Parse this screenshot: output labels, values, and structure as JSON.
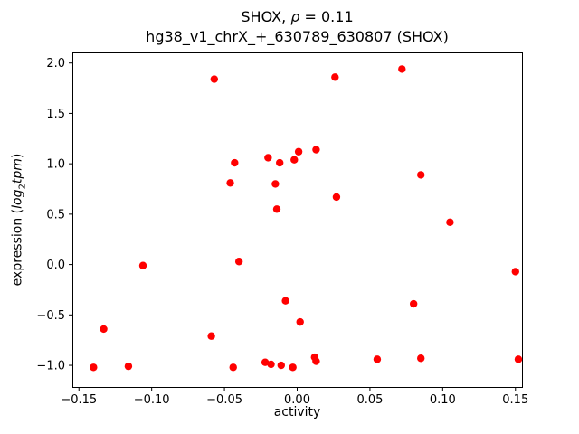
{
  "chart_data": {
    "type": "scatter",
    "title": "SHOX, ρ = 0.11",
    "subtitle": "hg38_v1_chrX_+_630789_630807 (SHOX)",
    "title_parts": {
      "prefix": "SHOX, ",
      "rho": "ρ",
      "suffix": " = 0.11"
    },
    "xlabel": "activity",
    "ylabel": "expression (log2 tpm)",
    "ylabel_parts": {
      "prefix": "expression (",
      "log_word": "log",
      "subscript": "2",
      "tpm_word": "tpm",
      "suffix": ")"
    },
    "marker_color": "#ff0000",
    "grid": false,
    "legend": null,
    "xlim": [
      -0.1545,
      0.1545
    ],
    "ylim": [
      -1.215,
      2.105
    ],
    "xtick_values": [
      -0.15,
      -0.1,
      -0.05,
      0.0,
      0.05,
      0.1,
      0.15
    ],
    "xtick_labels": [
      "−0.15",
      "−0.10",
      "−0.05",
      "0.00",
      "0.05",
      "0.10",
      "0.15"
    ],
    "ytick_values": [
      -1.0,
      -0.5,
      0.0,
      0.5,
      1.0,
      1.5,
      2.0
    ],
    "ytick_labels": [
      "−1.0",
      "−0.5",
      "0.0",
      "0.5",
      "1.0",
      "1.5",
      "2.0"
    ],
    "points": [
      [
        -0.14,
        -1.02
      ],
      [
        -0.133,
        -0.64
      ],
      [
        -0.116,
        -1.01
      ],
      [
        -0.106,
        -0.01
      ],
      [
        -0.059,
        -0.71
      ],
      [
        -0.057,
        1.84
      ],
      [
        -0.046,
        0.81
      ],
      [
        -0.043,
        1.01
      ],
      [
        -0.044,
        -1.02
      ],
      [
        -0.04,
        0.03
      ],
      [
        -0.02,
        1.06
      ],
      [
        -0.022,
        -0.97
      ],
      [
        -0.018,
        -0.99
      ],
      [
        -0.015,
        0.8
      ],
      [
        -0.014,
        0.55
      ],
      [
        -0.012,
        1.01
      ],
      [
        -0.011,
        -1.0
      ],
      [
        -0.002,
        1.04
      ],
      [
        0.001,
        1.12
      ],
      [
        -0.008,
        -0.36
      ],
      [
        -0.003,
        -1.02
      ],
      [
        0.002,
        -0.57
      ],
      [
        0.013,
        1.14
      ],
      [
        0.012,
        -0.92
      ],
      [
        0.013,
        -0.96
      ],
      [
        0.026,
        1.86
      ],
      [
        0.027,
        0.67
      ],
      [
        0.055,
        -0.94
      ],
      [
        0.072,
        1.94
      ],
      [
        0.08,
        -0.39
      ],
      [
        0.085,
        0.89
      ],
      [
        0.085,
        -0.93
      ],
      [
        0.105,
        0.42
      ],
      [
        0.15,
        -0.07
      ],
      [
        0.152,
        -0.94
      ]
    ]
  }
}
